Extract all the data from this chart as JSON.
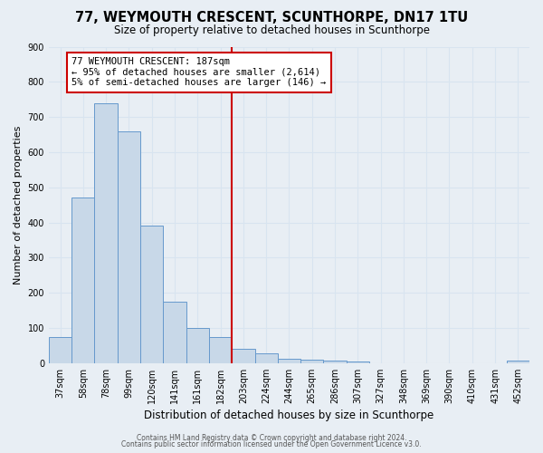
{
  "title": "77, WEYMOUTH CRESCENT, SCUNTHORPE, DN17 1TU",
  "subtitle": "Size of property relative to detached houses in Scunthorpe",
  "xlabel": "Distribution of detached houses by size in Scunthorpe",
  "ylabel": "Number of detached properties",
  "footer_lines": [
    "Contains HM Land Registry data © Crown copyright and database right 2024.",
    "Contains public sector information licensed under the Open Government Licence v3.0."
  ],
  "bar_labels": [
    "37sqm",
    "58sqm",
    "78sqm",
    "99sqm",
    "120sqm",
    "141sqm",
    "161sqm",
    "182sqm",
    "203sqm",
    "224sqm",
    "244sqm",
    "265sqm",
    "286sqm",
    "307sqm",
    "327sqm",
    "348sqm",
    "369sqm",
    "390sqm",
    "410sqm",
    "431sqm",
    "452sqm"
  ],
  "bar_values": [
    75,
    472,
    740,
    658,
    390,
    175,
    100,
    75,
    42,
    28,
    12,
    10,
    8,
    4,
    0,
    0,
    0,
    0,
    0,
    0,
    8
  ],
  "bar_color": "#c8d8e8",
  "bar_edge_color": "#6699cc",
  "ylim": [
    0,
    900
  ],
  "yticks": [
    0,
    100,
    200,
    300,
    400,
    500,
    600,
    700,
    800,
    900
  ],
  "vline_x": 7.5,
  "vline_color": "#cc0000",
  "annotation_title": "77 WEYMOUTH CRESCENT: 187sqm",
  "annotation_line1": "← 95% of detached houses are smaller (2,614)",
  "annotation_line2": "5% of semi-detached houses are larger (146) →",
  "annotation_box_color": "#ffffff",
  "annotation_box_edge_color": "#cc0000",
  "bg_color": "#e8eef4",
  "grid_color": "#d8e4f0",
  "title_fontsize": 10.5,
  "subtitle_fontsize": 8.5,
  "xlabel_fontsize": 8.5,
  "ylabel_fontsize": 8,
  "tick_fontsize": 7,
  "annot_fontsize": 7.5,
  "footer_fontsize": 5.5
}
